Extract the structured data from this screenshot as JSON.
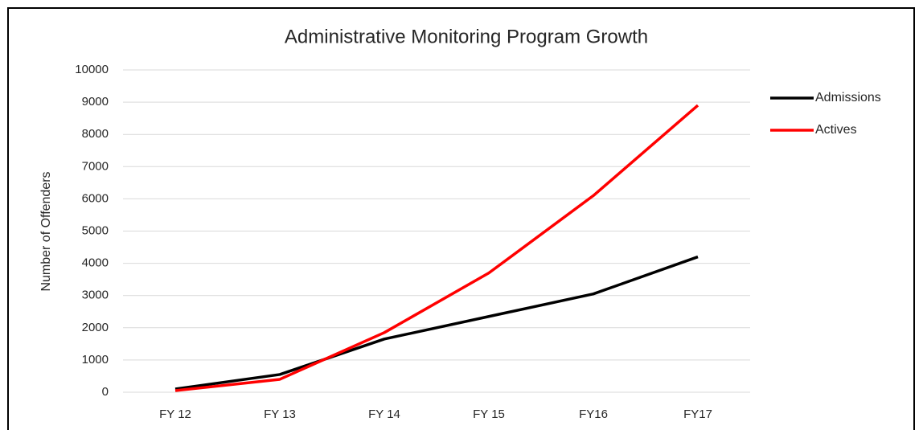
{
  "chart_data": {
    "type": "line",
    "title": "Administrative Monitoring Program Growth",
    "y_label": "Number of Offenders",
    "categories": [
      "FY 12",
      "FY 13",
      "FY 14",
      "FY 15",
      "FY16",
      "FY17"
    ],
    "series": [
      {
        "name": "Admissions",
        "color": "#000000",
        "values": [
          100,
          550,
          1650,
          2350,
          3050,
          4200
        ]
      },
      {
        "name": "Actives",
        "color": "#ff0000",
        "values": [
          50,
          400,
          1850,
          3700,
          6100,
          8900
        ]
      }
    ],
    "ylim": [
      0,
      10000
    ],
    "yticks": [
      0,
      1000,
      2000,
      3000,
      4000,
      5000,
      6000,
      7000,
      8000,
      9000,
      10000
    ],
    "grid": true,
    "legend": "right"
  }
}
